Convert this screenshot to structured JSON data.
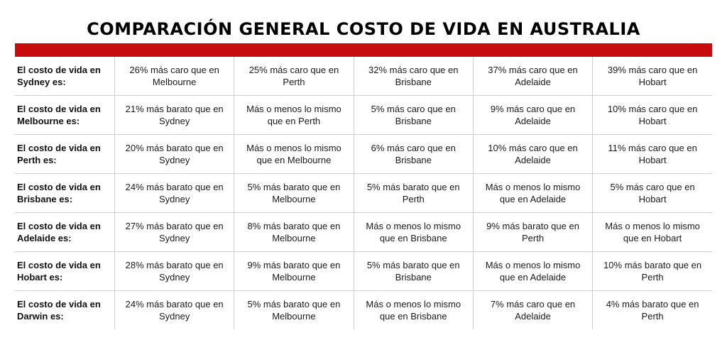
{
  "title": "COMPARACIÓN GENERAL COSTO DE VIDA EN AUSTRALIA",
  "accent_color": "#c60c0c",
  "rows": [
    {
      "label_1": "El costo de vida en",
      "label_2": "Sydney es:",
      "cells": [
        {
          "l1": "26% más caro que en",
          "l2": "Melbourne"
        },
        {
          "l1": "25% más caro que en",
          "l2": "Perth"
        },
        {
          "l1": "32% más caro que en",
          "l2": "Brisbane"
        },
        {
          "l1": "37% más caro que en",
          "l2": "Adelaide"
        },
        {
          "l1": "39% más caro que en",
          "l2": "Hobart"
        }
      ]
    },
    {
      "label_1": "El costo de vida en",
      "label_2": "Melbourne es:",
      "cells": [
        {
          "l1": "21% más barato que en",
          "l2": "Sydney"
        },
        {
          "l1": "Más o menos lo mismo",
          "l2": "que en Perth"
        },
        {
          "l1": "5% más caro que en",
          "l2": "Brisbane"
        },
        {
          "l1": "9% más caro que en",
          "l2": "Adelaide"
        },
        {
          "l1": "10% más caro que en",
          "l2": "Hobart"
        }
      ]
    },
    {
      "label_1": "El costo de vida en",
      "label_2": "Perth es:",
      "cells": [
        {
          "l1": "20% más barato que en",
          "l2": "Sydney"
        },
        {
          "l1": "Más o menos lo mismo",
          "l2": "que en Melbourne"
        },
        {
          "l1": "6% más caro que en",
          "l2": "Brisbane"
        },
        {
          "l1": "10% más caro que en",
          "l2": "Adelaide"
        },
        {
          "l1": "11% más caro que en",
          "l2": "Hobart"
        }
      ]
    },
    {
      "label_1": "El costo de vida en",
      "label_2": "Brisbane es:",
      "cells": [
        {
          "l1": "24% más barato que en",
          "l2": "Sydney"
        },
        {
          "l1": "5% más barato que en",
          "l2": "Melbourne"
        },
        {
          "l1": "5% más barato que en",
          "l2": "Perth"
        },
        {
          "l1": "Más o menos lo mismo",
          "l2": "que en Adelaide"
        },
        {
          "l1": "5% más caro que en",
          "l2": "Hobart"
        }
      ]
    },
    {
      "label_1": "El costo de vida en",
      "label_2": "Adelaide es:",
      "cells": [
        {
          "l1": "27% más barato que en",
          "l2": "Sydney"
        },
        {
          "l1": "8% más barato que en",
          "l2": "Melbourne"
        },
        {
          "l1": "Más o menos lo mismo",
          "l2": "que en Brisbane"
        },
        {
          "l1": "9% más barato que en",
          "l2": "Perth"
        },
        {
          "l1": "Más o menos lo mismo",
          "l2": "que en Hobart"
        }
      ]
    },
    {
      "label_1": "El costo de vida en",
      "label_2": "Hobart es:",
      "cells": [
        {
          "l1": "28% más barato que en",
          "l2": "Sydney"
        },
        {
          "l1": "9% más barato que en",
          "l2": "Melbourne"
        },
        {
          "l1": "5% más barato que en",
          "l2": "Brisbane"
        },
        {
          "l1": "Más o menos lo mismo",
          "l2": "que en Adelaide"
        },
        {
          "l1": "10% más barato que en",
          "l2": "Perth"
        }
      ]
    },
    {
      "label_1": "El costo de vida en",
      "label_2": "Darwin es:",
      "cells": [
        {
          "l1": "24% más barato que en",
          "l2": "Sydney"
        },
        {
          "l1": "5% más barato que en",
          "l2": "Melbourne"
        },
        {
          "l1": "Más o menos lo mismo",
          "l2": "que en Brisbane"
        },
        {
          "l1": "7% más caro que en",
          "l2": "Adelaide"
        },
        {
          "l1": "4% más barato que en",
          "l2": "Perth"
        }
      ]
    }
  ]
}
